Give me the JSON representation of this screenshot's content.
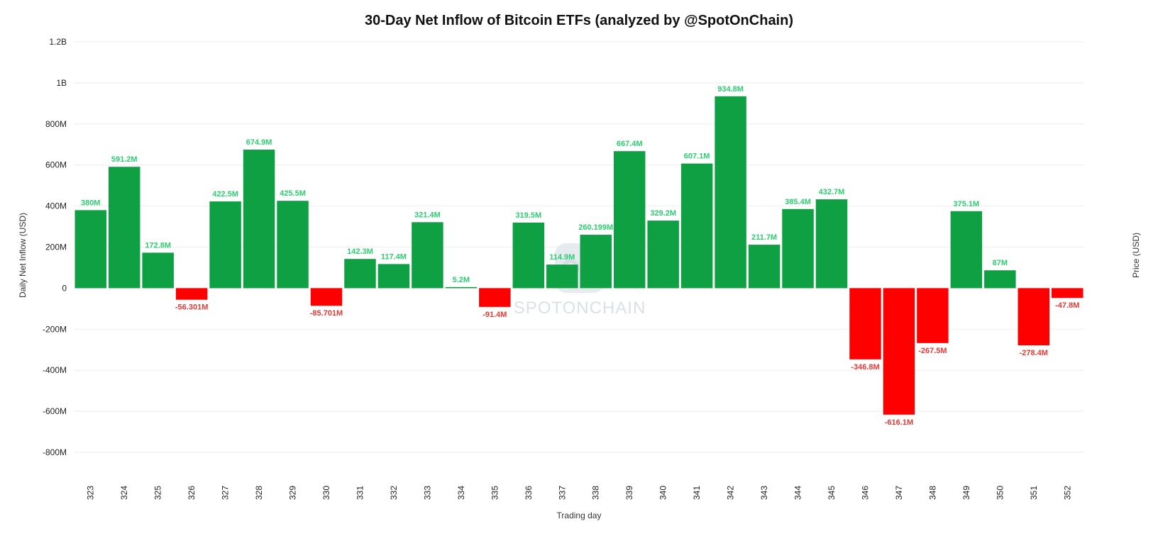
{
  "chart_data": {
    "type": "bar",
    "title": "30-Day Net Inflow of Bitcoin ETFs (analyzed by @SpotOnChain)",
    "xlabel": "Trading day",
    "ylabel": "Daily Net Inflow (USD)",
    "y2label": "Price (USD)",
    "ylim": [
      -800000000,
      1200000000
    ],
    "yticks": [
      {
        "value": 1200000000,
        "label": "1.2B"
      },
      {
        "value": 1000000000,
        "label": "1B"
      },
      {
        "value": 800000000,
        "label": "800M"
      },
      {
        "value": 600000000,
        "label": "600M"
      },
      {
        "value": 400000000,
        "label": "400M"
      },
      {
        "value": 200000000,
        "label": "200M"
      },
      {
        "value": 0,
        "label": "0"
      },
      {
        "value": -200000000,
        "label": "-200M"
      },
      {
        "value": -400000000,
        "label": "-400M"
      },
      {
        "value": -600000000,
        "label": "-600M"
      },
      {
        "value": -800000000,
        "label": "-800M"
      }
    ],
    "categories": [
      "323",
      "324",
      "325",
      "326",
      "327",
      "328",
      "329",
      "330",
      "331",
      "332",
      "333",
      "334",
      "335",
      "336",
      "337",
      "338",
      "339",
      "340",
      "341",
      "342",
      "343",
      "344",
      "345",
      "346",
      "347",
      "348",
      "349",
      "350",
      "351",
      "352"
    ],
    "values": [
      380000000,
      591200000,
      172800000,
      -56301000,
      422500000,
      674900000,
      425500000,
      -85701000,
      142300000,
      117400000,
      321400000,
      5200000,
      -91400000,
      319500000,
      114900000,
      260199000,
      667400000,
      329200000,
      607100000,
      934800000,
      211700000,
      385400000,
      432700000,
      -346800000,
      -616100000,
      -267500000,
      375100000,
      87000000,
      -278400000,
      -47800000
    ],
    "labels": [
      "380M",
      "591.2M",
      "172.8M",
      "-56.301M",
      "422.5M",
      "674.9M",
      "425.5M",
      "-85.701M",
      "142.3M",
      "117.4M",
      "321.4M",
      "5.2M",
      "-91.4M",
      "319.5M",
      "114.9M",
      "260.199M",
      "667.4M",
      "329.2M",
      "607.1M",
      "934.8M",
      "211.7M",
      "385.4M",
      "432.7M",
      "-346.8M",
      "-616.1M",
      "-267.5M",
      "375.1M",
      "87M",
      "-278.4M",
      "-47.8M"
    ],
    "positive_color": "#0ea043",
    "negative_color": "#ff0000",
    "positive_label_color": "#2ecc71",
    "negative_label_color": "#e53935",
    "grid": true,
    "legend": false
  },
  "watermark": {
    "text": "SPOTONCHAIN"
  }
}
